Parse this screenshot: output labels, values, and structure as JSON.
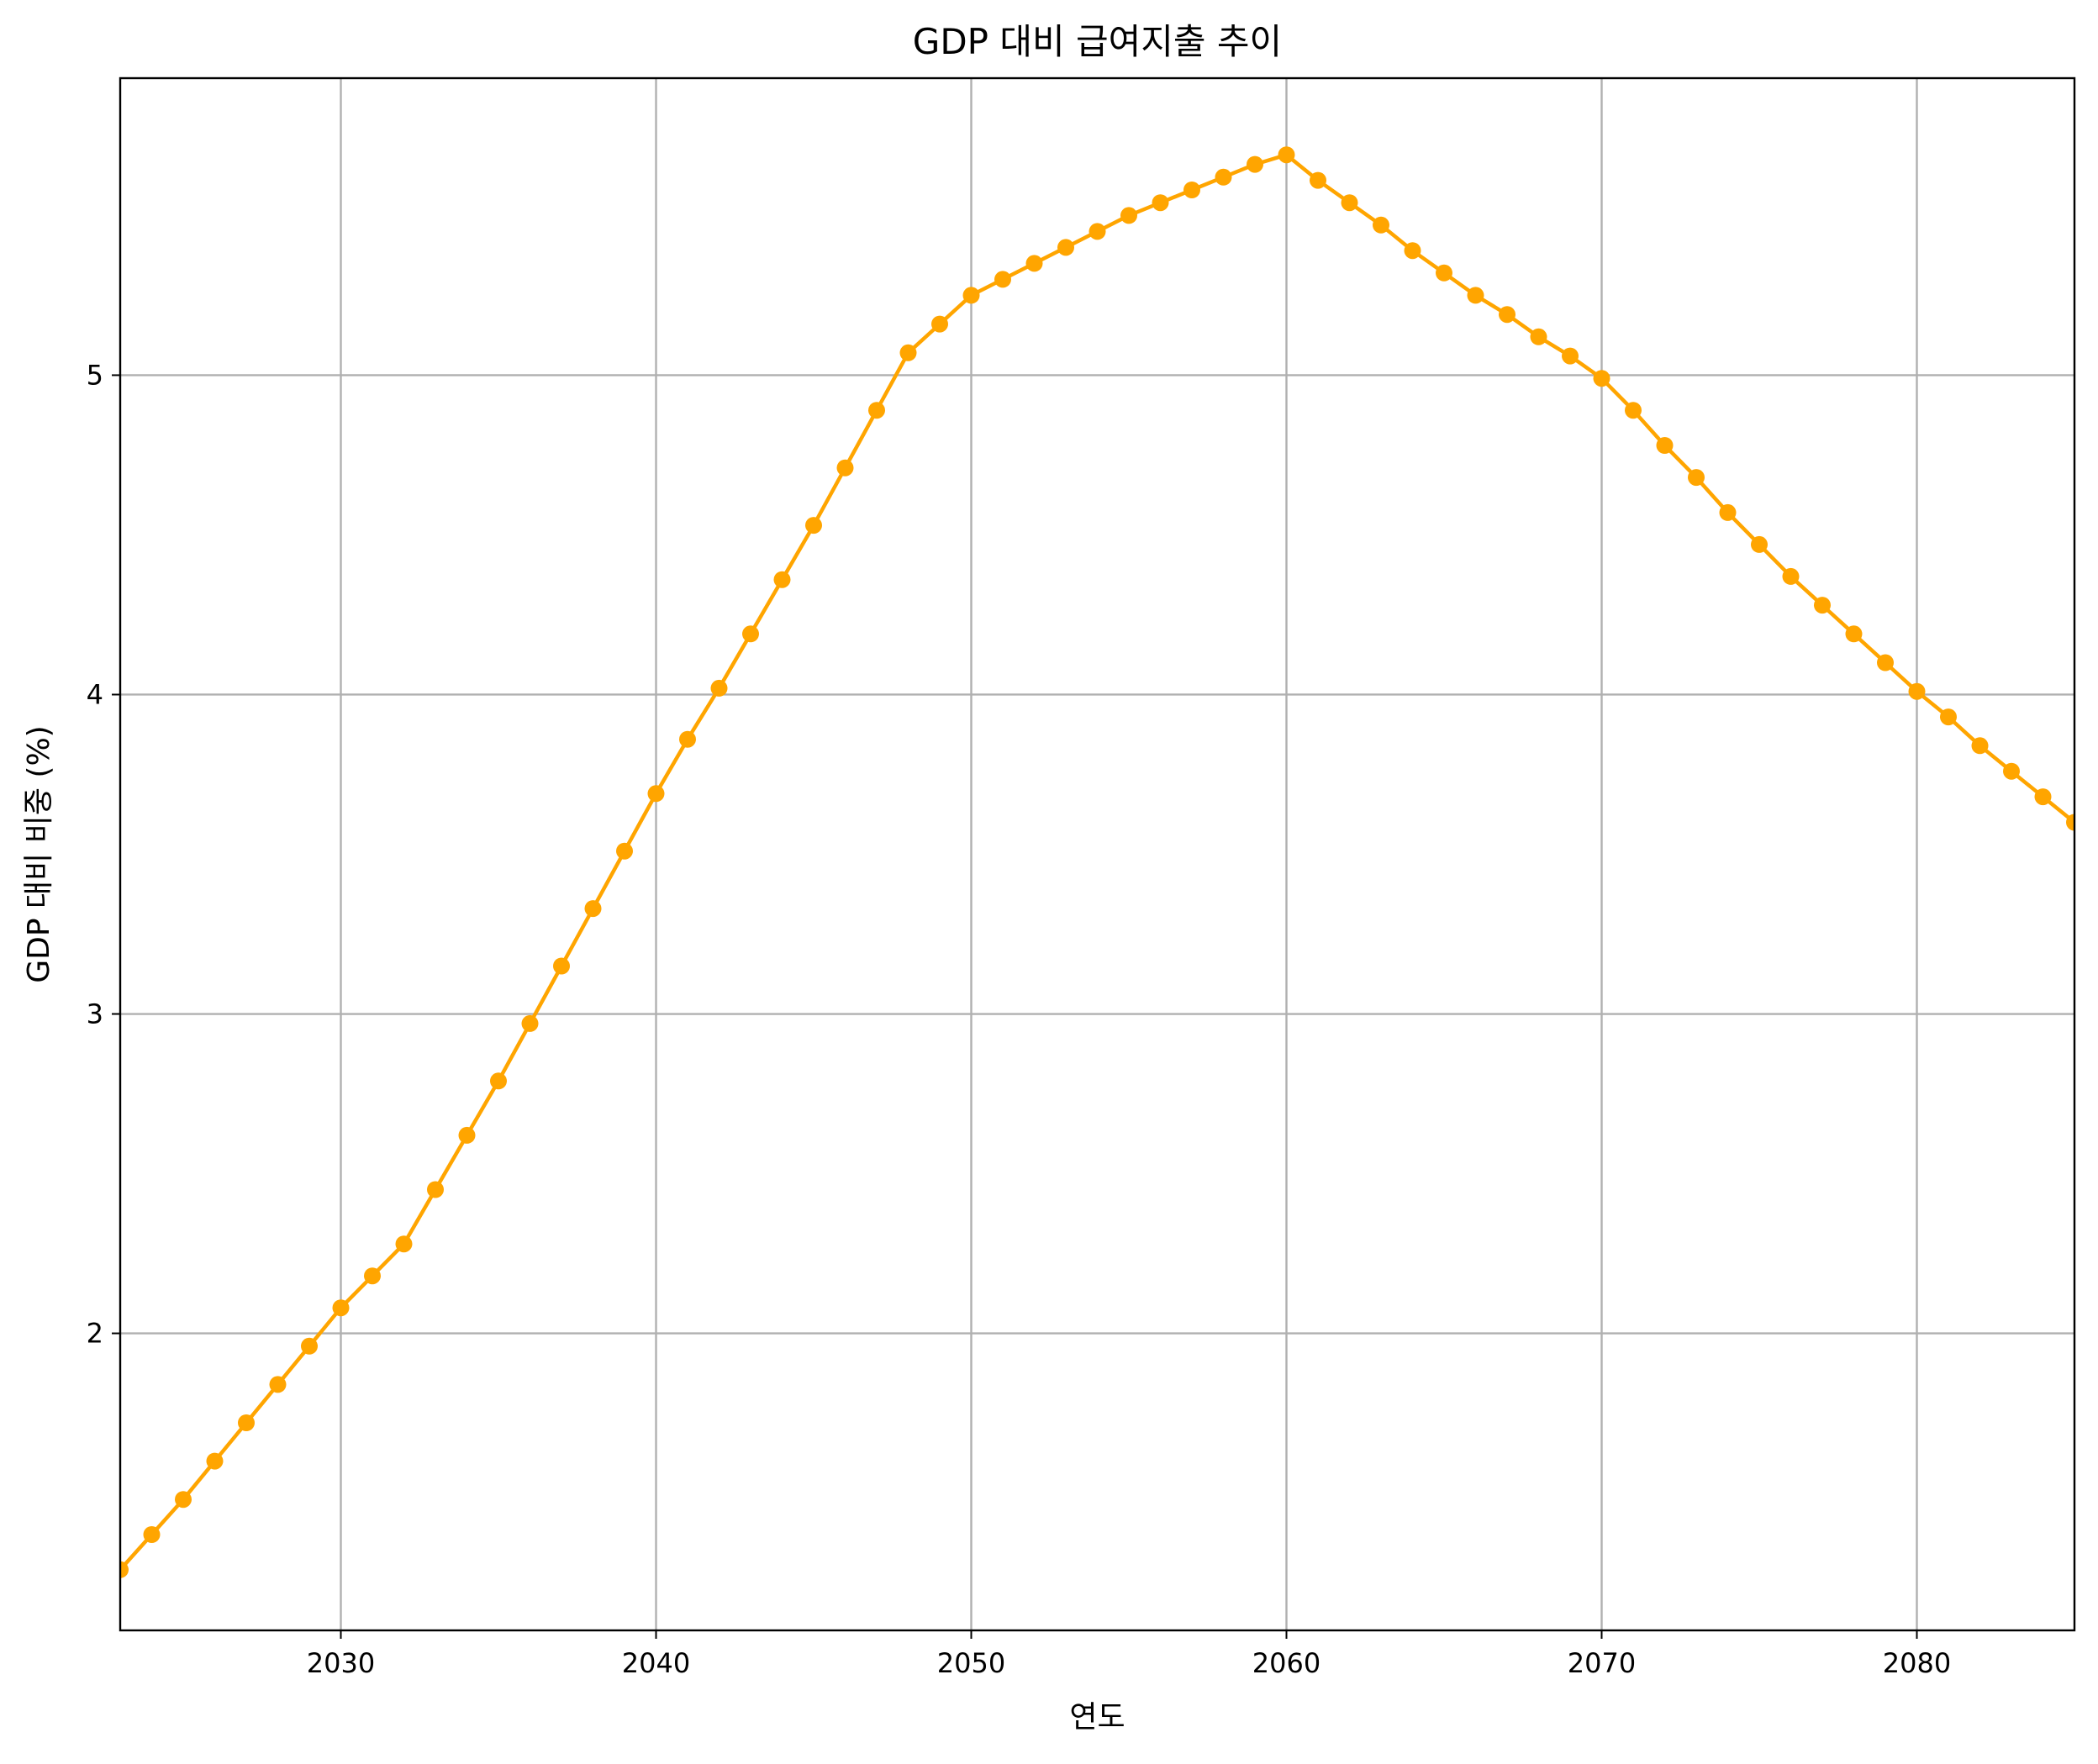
{
  "chart_data": {
    "type": "line",
    "title": "GDP 대비 급여지출 추이",
    "xlabel": "연도",
    "ylabel": "GDP 대비 비중 (%)",
    "xlim": [
      2023,
      2085
    ],
    "ylim": [
      1.07,
      5.93
    ],
    "xticks": [
      2030,
      2040,
      2050,
      2060,
      2070,
      2080
    ],
    "yticks": [
      2,
      3,
      4,
      5
    ],
    "grid": true,
    "series": [
      {
        "color": "#ffa500",
        "marker": "circle",
        "x": [
          2023,
          2024,
          2025,
          2026,
          2027,
          2028,
          2029,
          2030,
          2031,
          2032,
          2033,
          2034,
          2035,
          2036,
          2037,
          2038,
          2039,
          2040,
          2041,
          2042,
          2043,
          2044,
          2045,
          2046,
          2047,
          2048,
          2049,
          2050,
          2051,
          2052,
          2053,
          2054,
          2055,
          2056,
          2057,
          2058,
          2059,
          2060,
          2061,
          2062,
          2063,
          2064,
          2065,
          2066,
          2067,
          2068,
          2069,
          2070,
          2071,
          2072,
          2073,
          2074,
          2075,
          2076,
          2077,
          2078,
          2079,
          2080,
          2081,
          2082,
          2083,
          2084,
          2085
        ],
        "values": [
          1.26,
          1.37,
          1.48,
          1.6,
          1.72,
          1.84,
          1.96,
          2.08,
          2.18,
          2.28,
          2.45,
          2.62,
          2.79,
          2.97,
          3.15,
          3.33,
          3.51,
          3.69,
          3.86,
          4.02,
          4.19,
          4.36,
          4.53,
          4.71,
          4.89,
          5.07,
          5.16,
          5.25,
          5.3,
          5.35,
          5.4,
          5.45,
          5.5,
          5.54,
          5.58,
          5.62,
          5.66,
          5.69,
          5.61,
          5.54,
          5.47,
          5.39,
          5.32,
          5.25,
          5.19,
          5.12,
          5.06,
          4.99,
          4.89,
          4.78,
          4.68,
          4.57,
          4.47,
          4.37,
          4.28,
          4.19,
          4.1,
          4.01,
          3.93,
          3.84,
          3.76,
          3.68,
          3.6
        ]
      }
    ]
  }
}
